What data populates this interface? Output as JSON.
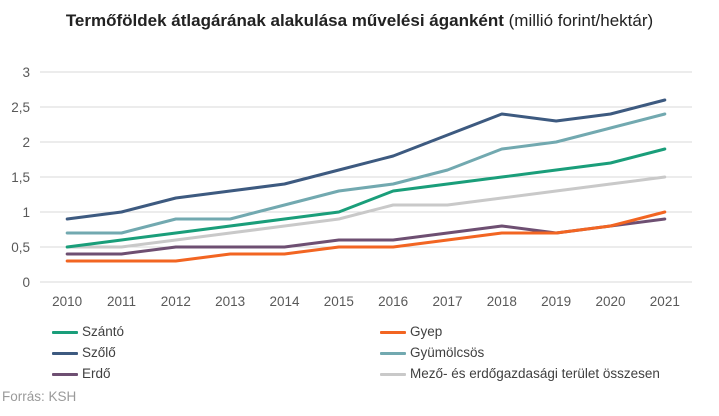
{
  "title": {
    "bold": "Termőföldek átlagárának alakulása művelési áganként",
    "rest": " (millió forint/hektár)"
  },
  "source": "Forrás: KSH",
  "chart_data": {
    "type": "line",
    "title": "Termőföldek átlagárának alakulása művelési áganként (millió forint/hektár)",
    "xlabel": "",
    "ylabel": "",
    "x": [
      "2010",
      "2011",
      "2012",
      "2013",
      "2014",
      "2015",
      "2016",
      "2017",
      "2018",
      "2019",
      "2020",
      "2021"
    ],
    "ylim": [
      0,
      3
    ],
    "yticks": [
      0,
      0.5,
      1,
      1.5,
      2,
      2.5,
      3
    ],
    "ytick_labels": [
      "0",
      "0,5",
      "1",
      "1,5",
      "2",
      "2,5",
      "3"
    ],
    "grid": true,
    "legend_position": "bottom",
    "series": [
      {
        "name": "Szántó",
        "color": "#1a9e7a",
        "values": [
          0.5,
          0.6,
          0.7,
          0.8,
          0.9,
          1.0,
          1.3,
          1.4,
          1.5,
          1.6,
          1.7,
          1.9
        ]
      },
      {
        "name": "Gyep",
        "color": "#f26522",
        "values": [
          0.3,
          0.3,
          0.3,
          0.4,
          0.4,
          0.5,
          0.5,
          0.6,
          0.7,
          0.7,
          0.8,
          1.0
        ]
      },
      {
        "name": "Szőlő",
        "color": "#3d5a80",
        "values": [
          0.9,
          1.0,
          1.2,
          1.3,
          1.4,
          1.6,
          1.8,
          2.1,
          2.4,
          2.3,
          2.4,
          2.6
        ]
      },
      {
        "name": "Gyümölcsös",
        "color": "#72a9b0",
        "values": [
          0.7,
          0.7,
          0.9,
          0.9,
          1.1,
          1.3,
          1.4,
          1.6,
          1.9,
          2.0,
          2.2,
          2.4
        ]
      },
      {
        "name": "Erdő",
        "color": "#6e4f72",
        "values": [
          0.4,
          0.4,
          0.5,
          0.5,
          0.5,
          0.6,
          0.6,
          0.7,
          0.8,
          0.7,
          0.8,
          0.9
        ]
      },
      {
        "name": "Mező- és erdőgazdasági terület összesen",
        "color": "#c9c9c9",
        "values": [
          0.5,
          0.5,
          0.6,
          0.7,
          0.8,
          0.9,
          1.1,
          1.1,
          1.2,
          1.3,
          1.4,
          1.5
        ]
      }
    ]
  }
}
